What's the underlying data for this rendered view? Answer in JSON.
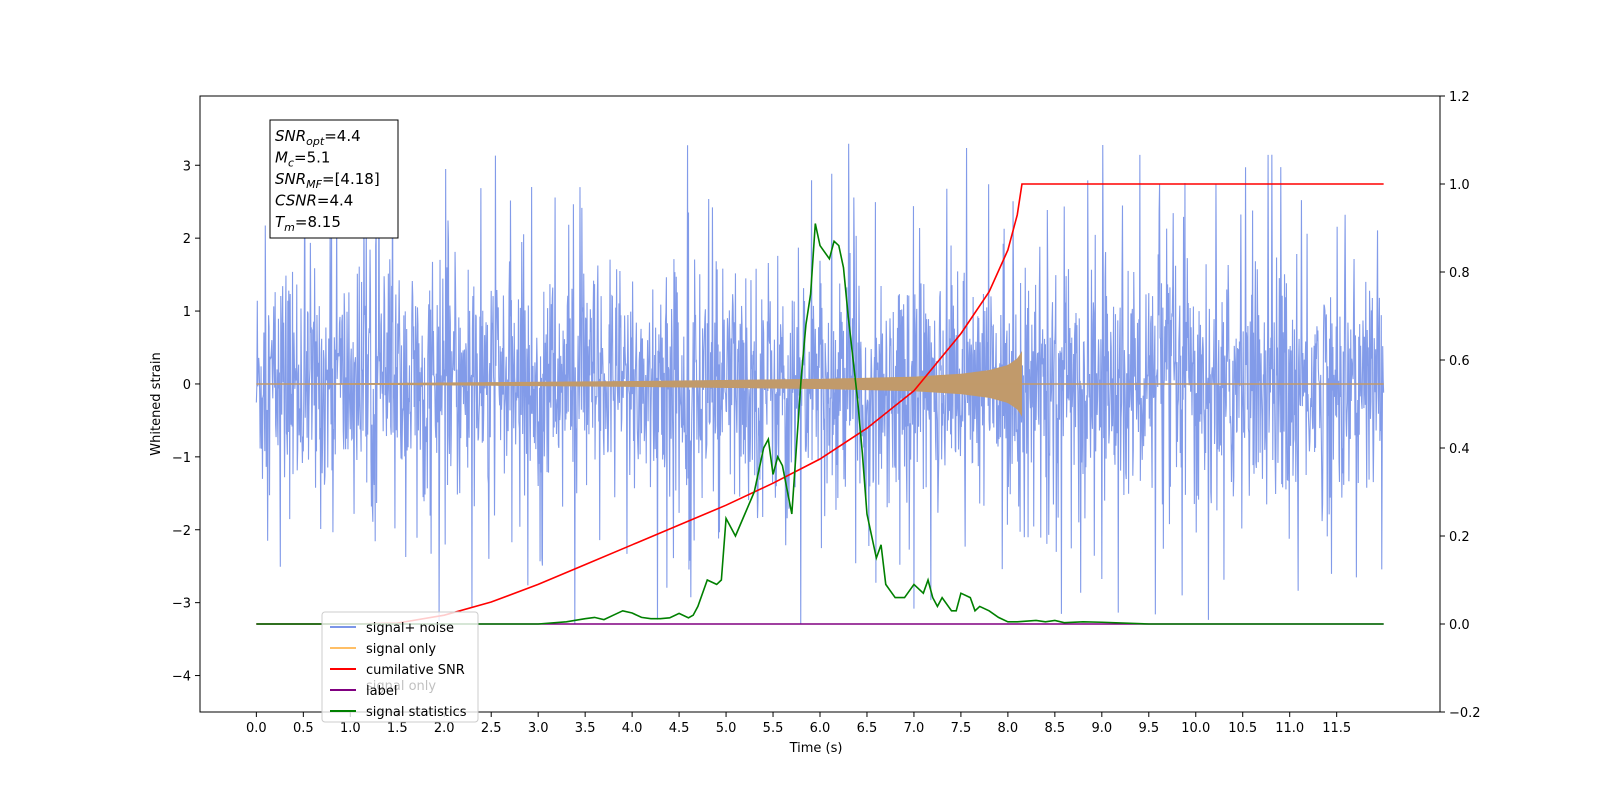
{
  "chart_data": {
    "type": "line",
    "title": "",
    "xlabel": "Time (s)",
    "ylabel": "Whitened strain",
    "y2label": "",
    "xlim": [
      -0.6,
      12.6
    ],
    "ylim": [
      -4.5,
      3.95
    ],
    "y2lim": [
      -0.2,
      1.2
    ],
    "x_ticks": [
      "0.0",
      "0.5",
      "1.0",
      "1.5",
      "2.0",
      "2.5",
      "3.0",
      "3.5",
      "4.0",
      "4.5",
      "5.0",
      "5.5",
      "6.0",
      "6.5",
      "7.0",
      "7.5",
      "8.0",
      "8.5",
      "9.0",
      "9.5",
      "10.0",
      "10.5",
      "11.0",
      "11.5"
    ],
    "y_ticks": [
      "3",
      "2",
      "1",
      "0",
      "−1",
      "−2",
      "−3",
      "−4"
    ],
    "y2_ticks": [
      "1.2",
      "1.0",
      "0.8",
      "0.6",
      "0.4",
      "0.2",
      "0.0",
      "−0.2"
    ],
    "grid": false,
    "legend_position": "lower-left",
    "annotation": {
      "lines": [
        {
          "base": "SNR",
          "sub": "opt",
          "value": "=4.4"
        },
        {
          "base": "M",
          "sub": "c",
          "value": "=5.1"
        },
        {
          "base": "SNR",
          "sub": "MF",
          "value": "=[4.18]"
        },
        {
          "base": "CSNR",
          "sub": "",
          "value": "=4.4"
        },
        {
          "base": "T",
          "sub": "m",
          "value": "=8.15"
        }
      ]
    },
    "series": [
      {
        "name": "signal+ noise",
        "color": "#7b96e8",
        "axis": "left",
        "x_range": [
          0.0,
          12.0
        ],
        "envelope": {
          "typical_abs": 1.8,
          "peak_max": 3.6,
          "peak_min": -4.1
        }
      },
      {
        "name": "signal only",
        "color": "#ffbf66",
        "axis": "left",
        "fill_color": "#c19a6b",
        "x_range": [
          0.0,
          12.0
        ],
        "chirp_end": 8.15,
        "amplitude_points": [
          [
            0.0,
            0.0
          ],
          [
            2.0,
            0.02
          ],
          [
            4.0,
            0.04
          ],
          [
            6.0,
            0.07
          ],
          [
            7.0,
            0.1
          ],
          [
            7.5,
            0.14
          ],
          [
            7.8,
            0.19
          ],
          [
            8.0,
            0.26
          ],
          [
            8.1,
            0.35
          ],
          [
            8.15,
            0.45
          ]
        ]
      },
      {
        "name": "cumilative SNR",
        "color": "#ff0000",
        "axis": "right",
        "x": [
          0.0,
          0.5,
          1.0,
          1.5,
          2.0,
          2.5,
          3.0,
          3.5,
          4.0,
          4.5,
          5.0,
          5.5,
          6.0,
          6.5,
          7.0,
          7.5,
          7.8,
          8.0,
          8.1,
          8.15,
          8.5,
          9.0,
          10.0,
          11.0,
          12.0
        ],
        "y": [
          0.0,
          0.0,
          0.0,
          0.002,
          0.02,
          0.05,
          0.09,
          0.135,
          0.18,
          0.225,
          0.27,
          0.32,
          0.375,
          0.445,
          0.53,
          0.66,
          0.755,
          0.85,
          0.93,
          1.0,
          1.0,
          1.0,
          1.0,
          1.0,
          1.0
        ]
      },
      {
        "name": "label",
        "color": "#800080",
        "axis": "right",
        "x": [
          0.0,
          12.0
        ],
        "y": [
          0.0,
          0.0
        ]
      },
      {
        "name": "signal statistics",
        "color": "#008000",
        "axis": "right",
        "x": [
          0.0,
          3.0,
          3.3,
          3.5,
          3.6,
          3.7,
          3.8,
          3.9,
          4.0,
          4.1,
          4.2,
          4.3,
          4.4,
          4.5,
          4.6,
          4.65,
          4.7,
          4.8,
          4.9,
          4.95,
          5.0,
          5.1,
          5.2,
          5.3,
          5.4,
          5.45,
          5.5,
          5.55,
          5.6,
          5.7,
          5.8,
          5.85,
          5.9,
          5.95,
          6.0,
          6.1,
          6.15,
          6.2,
          6.25,
          6.3,
          6.4,
          6.45,
          6.5,
          6.6,
          6.65,
          6.7,
          6.8,
          6.9,
          7.0,
          7.1,
          7.15,
          7.2,
          7.25,
          7.3,
          7.4,
          7.45,
          7.5,
          7.6,
          7.65,
          7.7,
          7.8,
          7.9,
          8.0,
          8.1,
          8.3,
          8.4,
          8.5,
          8.6,
          8.8,
          9.0,
          9.5,
          12.0
        ],
        "y": [
          0.0,
          0.0,
          0.005,
          0.012,
          0.015,
          0.01,
          0.02,
          0.03,
          0.025,
          0.015,
          0.012,
          0.012,
          0.014,
          0.024,
          0.014,
          0.02,
          0.04,
          0.1,
          0.09,
          0.1,
          0.24,
          0.2,
          0.25,
          0.3,
          0.4,
          0.42,
          0.34,
          0.38,
          0.36,
          0.25,
          0.56,
          0.68,
          0.75,
          0.91,
          0.86,
          0.83,
          0.87,
          0.86,
          0.81,
          0.7,
          0.51,
          0.39,
          0.25,
          0.15,
          0.18,
          0.09,
          0.06,
          0.06,
          0.09,
          0.07,
          0.1,
          0.06,
          0.04,
          0.06,
          0.03,
          0.03,
          0.07,
          0.06,
          0.03,
          0.04,
          0.03,
          0.015,
          0.005,
          0.005,
          0.008,
          0.005,
          0.008,
          0.003,
          0.005,
          0.004,
          0.0,
          0.0
        ]
      }
    ],
    "legend_items": [
      {
        "label": "signal+ noise",
        "color": "#7b96e8"
      },
      {
        "label": "signal only",
        "color": "#ffbf66"
      },
      {
        "label": "cumilative SNR",
        "color": "#ff0000"
      },
      {
        "label": "label",
        "color": "#800080"
      },
      {
        "label": "signal statistics",
        "color": "#008000"
      }
    ],
    "legend_ghost_text": [
      "signal only"
    ]
  }
}
